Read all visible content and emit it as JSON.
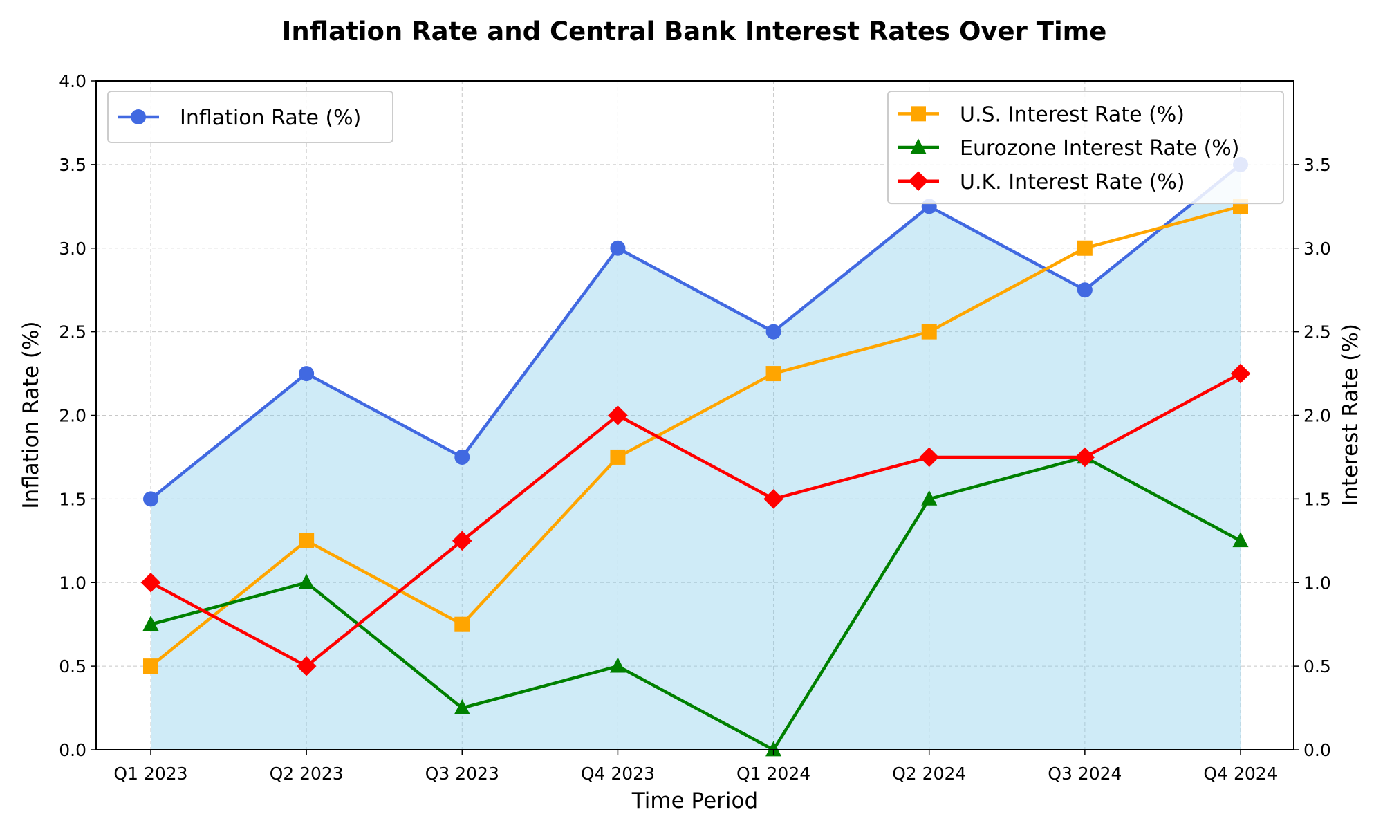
{
  "chart_data": {
    "type": "line",
    "title": "Inflation Rate and Central Bank Interest Rates Over Time",
    "xlabel": "Time Period",
    "ylabel": "Inflation Rate (%)",
    "y2label": "Interest Rate (%)",
    "categories": [
      "Q1 2023",
      "Q2 2023",
      "Q3 2023",
      "Q4 2023",
      "Q1 2024",
      "Q2 2024",
      "Q3 2024",
      "Q4 2024"
    ],
    "ylim": [
      0,
      4
    ],
    "y2lim": [
      0,
      4
    ],
    "yticks": [
      "0.0",
      "0.5",
      "1.0",
      "1.5",
      "2.0",
      "2.5",
      "3.0",
      "3.5",
      "4.0"
    ],
    "y2ticks": [
      "0.0",
      "0.5",
      "1.0",
      "1.5",
      "2.0",
      "2.5",
      "3.0",
      "3.5"
    ],
    "grid": true,
    "fill_under_inflation": true,
    "fill_color": "#87CEEB",
    "series": [
      {
        "name": "Inflation Rate (%)",
        "axis": "left",
        "marker": "circle",
        "color": "#4169E1",
        "values": [
          1.5,
          2.25,
          1.75,
          3.0,
          2.5,
          3.25,
          2.75,
          3.5
        ]
      },
      {
        "name": "U.S. Interest Rate (%)",
        "axis": "right",
        "marker": "square",
        "color": "#FFA500",
        "values": [
          0.5,
          1.25,
          0.75,
          1.75,
          2.25,
          2.5,
          3.0,
          3.25
        ]
      },
      {
        "name": "Eurozone Interest Rate (%)",
        "axis": "right",
        "marker": "triangle",
        "color": "#008000",
        "values": [
          0.75,
          1.0,
          0.25,
          0.5,
          0.0,
          1.5,
          1.75,
          1.25
        ]
      },
      {
        "name": "U.K. Interest Rate (%)",
        "axis": "right",
        "marker": "diamond",
        "color": "#FF0000",
        "values": [
          1.0,
          0.5,
          1.25,
          2.0,
          1.5,
          1.75,
          1.75,
          2.25
        ]
      }
    ],
    "legend_left": {
      "placement": "top-left",
      "series": [
        0
      ]
    },
    "legend_right": {
      "placement": "top-right",
      "series": [
        1,
        2,
        3
      ]
    }
  }
}
